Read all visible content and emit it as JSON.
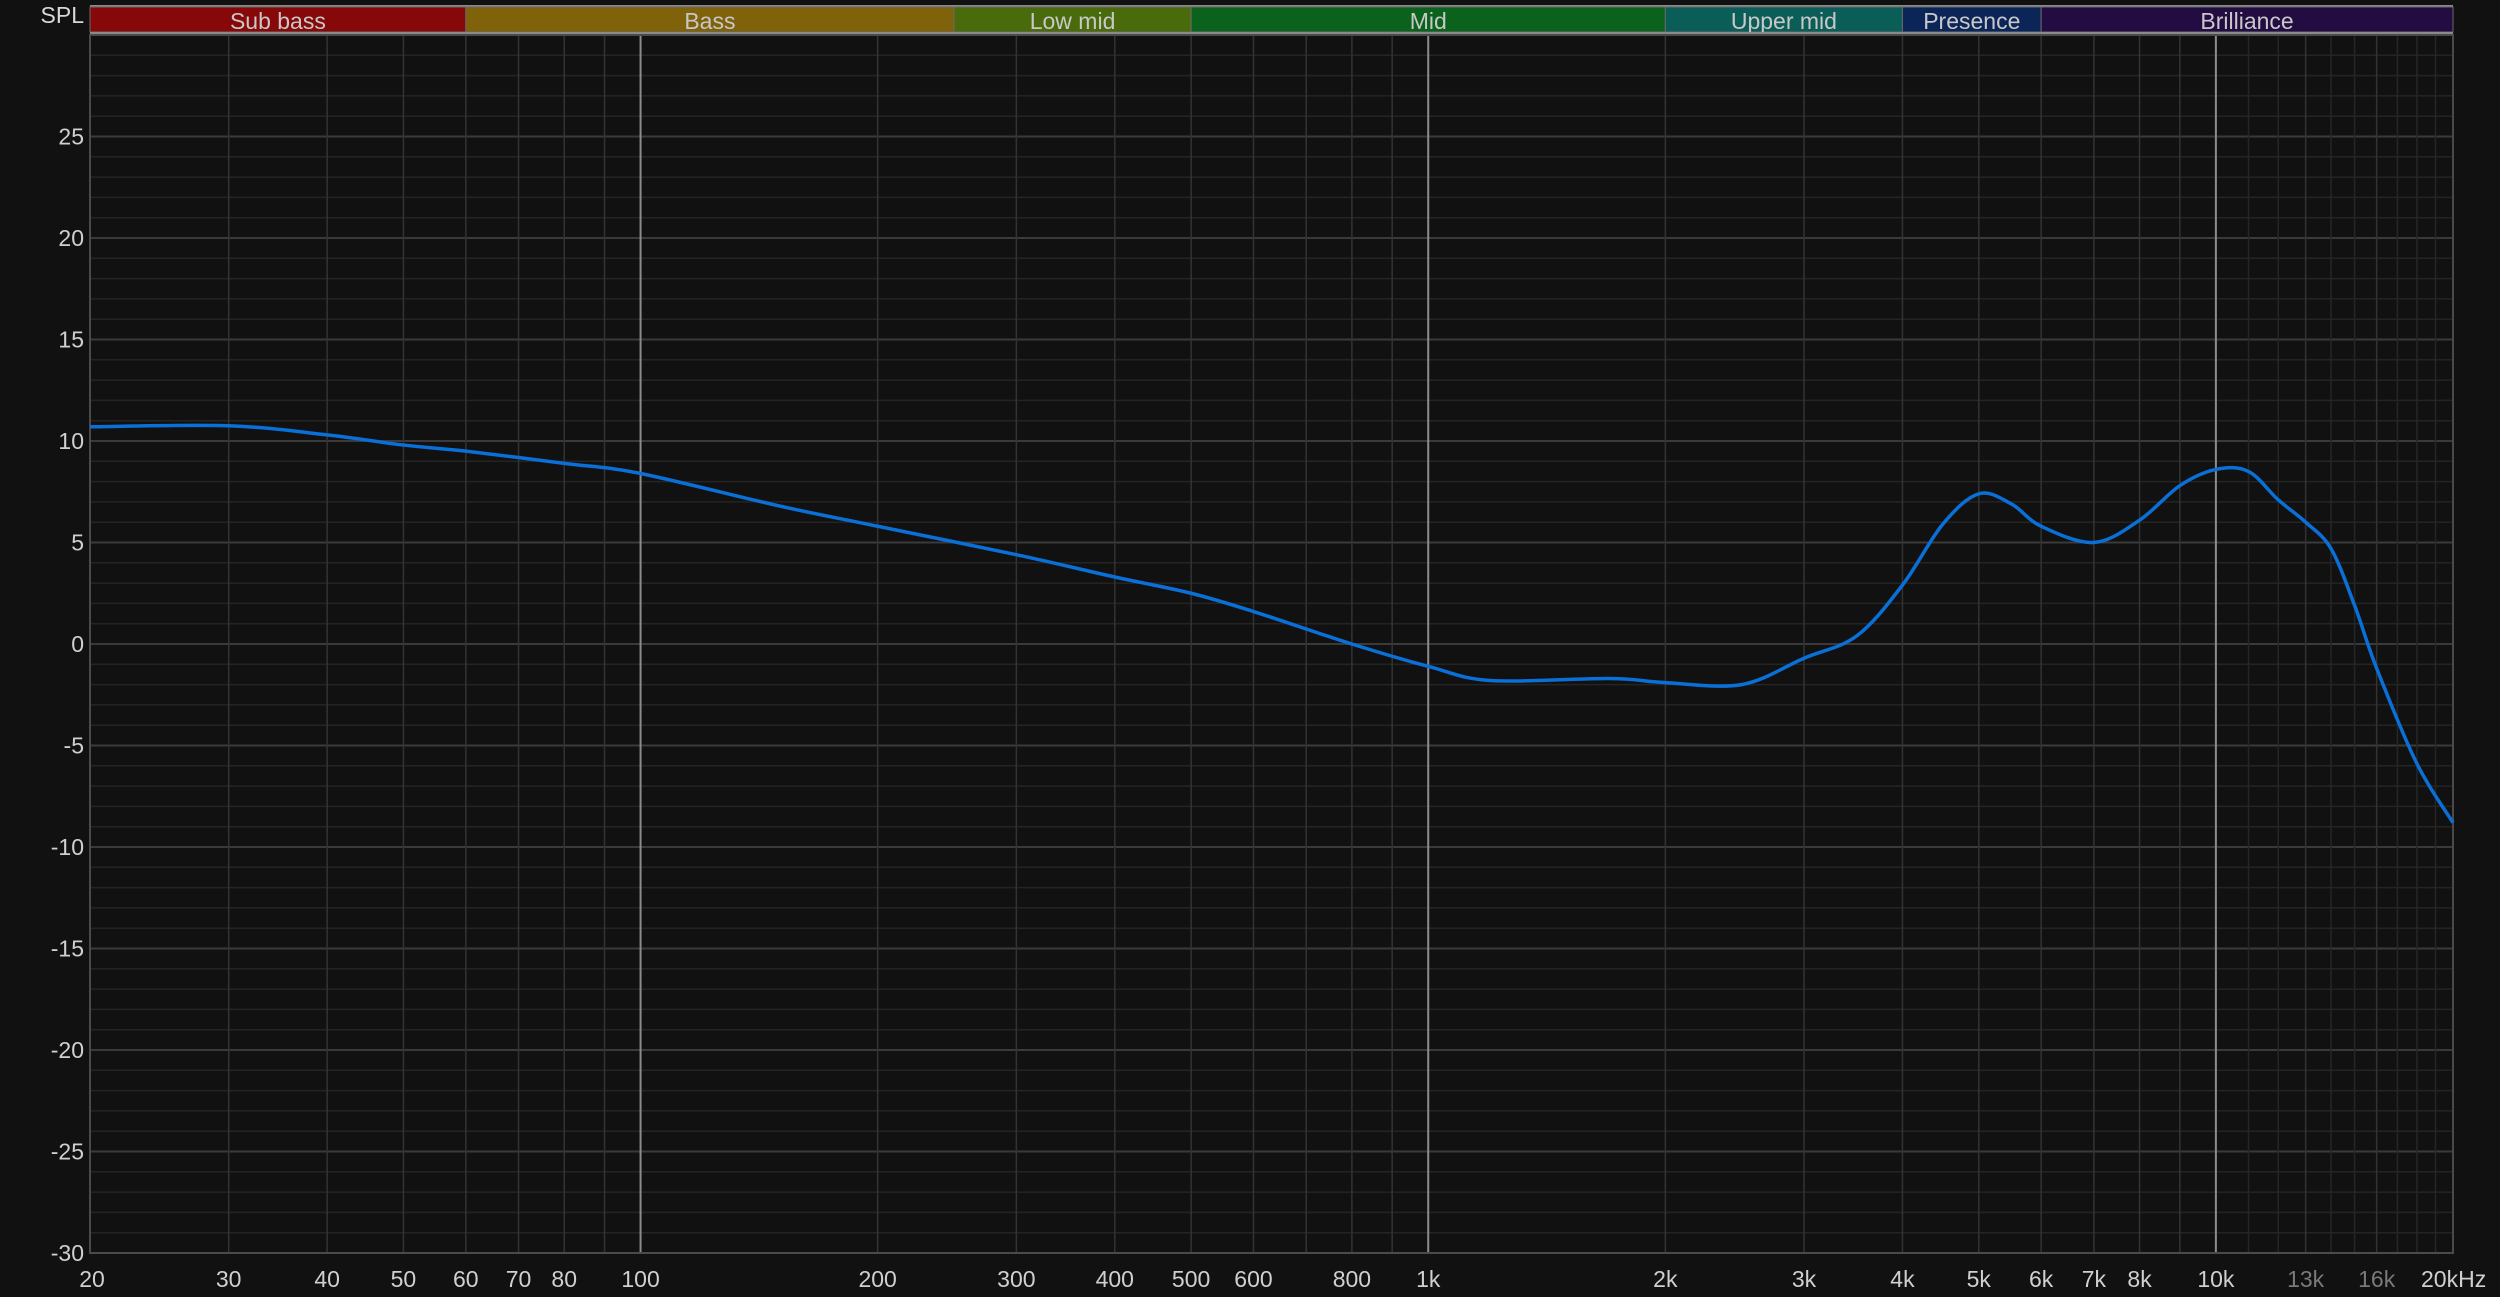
{
  "chart_data": {
    "type": "line",
    "ylabel": "SPL",
    "x_scale": "log",
    "xlim": [
      20,
      20000
    ],
    "ylim": [
      -30,
      30
    ],
    "grid": true,
    "x_ticks": [
      {
        "value": 20,
        "label": "20"
      },
      {
        "value": 30,
        "label": "30"
      },
      {
        "value": 40,
        "label": "40"
      },
      {
        "value": 50,
        "label": "50"
      },
      {
        "value": 60,
        "label": "60"
      },
      {
        "value": 70,
        "label": "70"
      },
      {
        "value": 80,
        "label": "80"
      },
      {
        "value": 100,
        "label": "100"
      },
      {
        "value": 200,
        "label": "200"
      },
      {
        "value": 300,
        "label": "300"
      },
      {
        "value": 400,
        "label": "400"
      },
      {
        "value": 500,
        "label": "500"
      },
      {
        "value": 600,
        "label": "600"
      },
      {
        "value": 800,
        "label": "800"
      },
      {
        "value": 1000,
        "label": "1k"
      },
      {
        "value": 2000,
        "label": "2k"
      },
      {
        "value": 3000,
        "label": "3k"
      },
      {
        "value": 4000,
        "label": "4k"
      },
      {
        "value": 5000,
        "label": "5k"
      },
      {
        "value": 6000,
        "label": "6k"
      },
      {
        "value": 7000,
        "label": "7k"
      },
      {
        "value": 8000,
        "label": "8k"
      },
      {
        "value": 10000,
        "label": "10k"
      },
      {
        "value": 13000,
        "label": "13k",
        "dim": true
      },
      {
        "value": 16000,
        "label": "16k",
        "dim": true
      },
      {
        "value": 20000,
        "label": "20kHz"
      }
    ],
    "y_ticks": [
      25,
      20,
      15,
      10,
      5,
      0,
      -5,
      -10,
      -15,
      -20,
      -25,
      -30
    ],
    "bands": [
      {
        "label": "Sub bass",
        "from": 20,
        "to": 60,
        "color": "#870808"
      },
      {
        "label": "Bass",
        "from": 60,
        "to": 250,
        "color": "#80620b"
      },
      {
        "label": "Low mid",
        "from": 250,
        "to": 500,
        "color": "#4a6b0b"
      },
      {
        "label": "Mid",
        "from": 500,
        "to": 2000,
        "color": "#0b621c"
      },
      {
        "label": "Upper mid",
        "from": 2000,
        "to": 4000,
        "color": "#0b5e58"
      },
      {
        "label": "Presence",
        "from": 4000,
        "to": 6000,
        "color": "#0b2558"
      },
      {
        "label": "Brilliance",
        "from": 6000,
        "to": 20000,
        "color": "#230c42"
      }
    ],
    "series": [
      {
        "color": "#0a6fd6",
        "x": [
          20,
          30,
          40,
          50,
          60,
          80,
          100,
          150,
          200,
          300,
          400,
          500,
          600,
          800,
          1000,
          1200,
          1700,
          2000,
          2500,
          3000,
          3500,
          4000,
          4500,
          5000,
          5500,
          6000,
          7000,
          8000,
          9000,
          10000,
          11000,
          12000,
          13000,
          14000,
          15000,
          16000,
          18000,
          20000
        ],
        "y": [
          10.7,
          10.75,
          10.3,
          9.8,
          9.5,
          8.9,
          8.4,
          6.8,
          5.8,
          4.4,
          3.3,
          2.5,
          1.6,
          0.0,
          -1.1,
          -1.8,
          -1.7,
          -1.9,
          -2.0,
          -0.7,
          0.4,
          2.9,
          5.9,
          7.4,
          6.9,
          5.8,
          5.0,
          6.1,
          7.8,
          8.6,
          8.5,
          7.1,
          6.0,
          4.7,
          1.9,
          -1.2,
          -5.9,
          -8.8
        ]
      }
    ]
  }
}
